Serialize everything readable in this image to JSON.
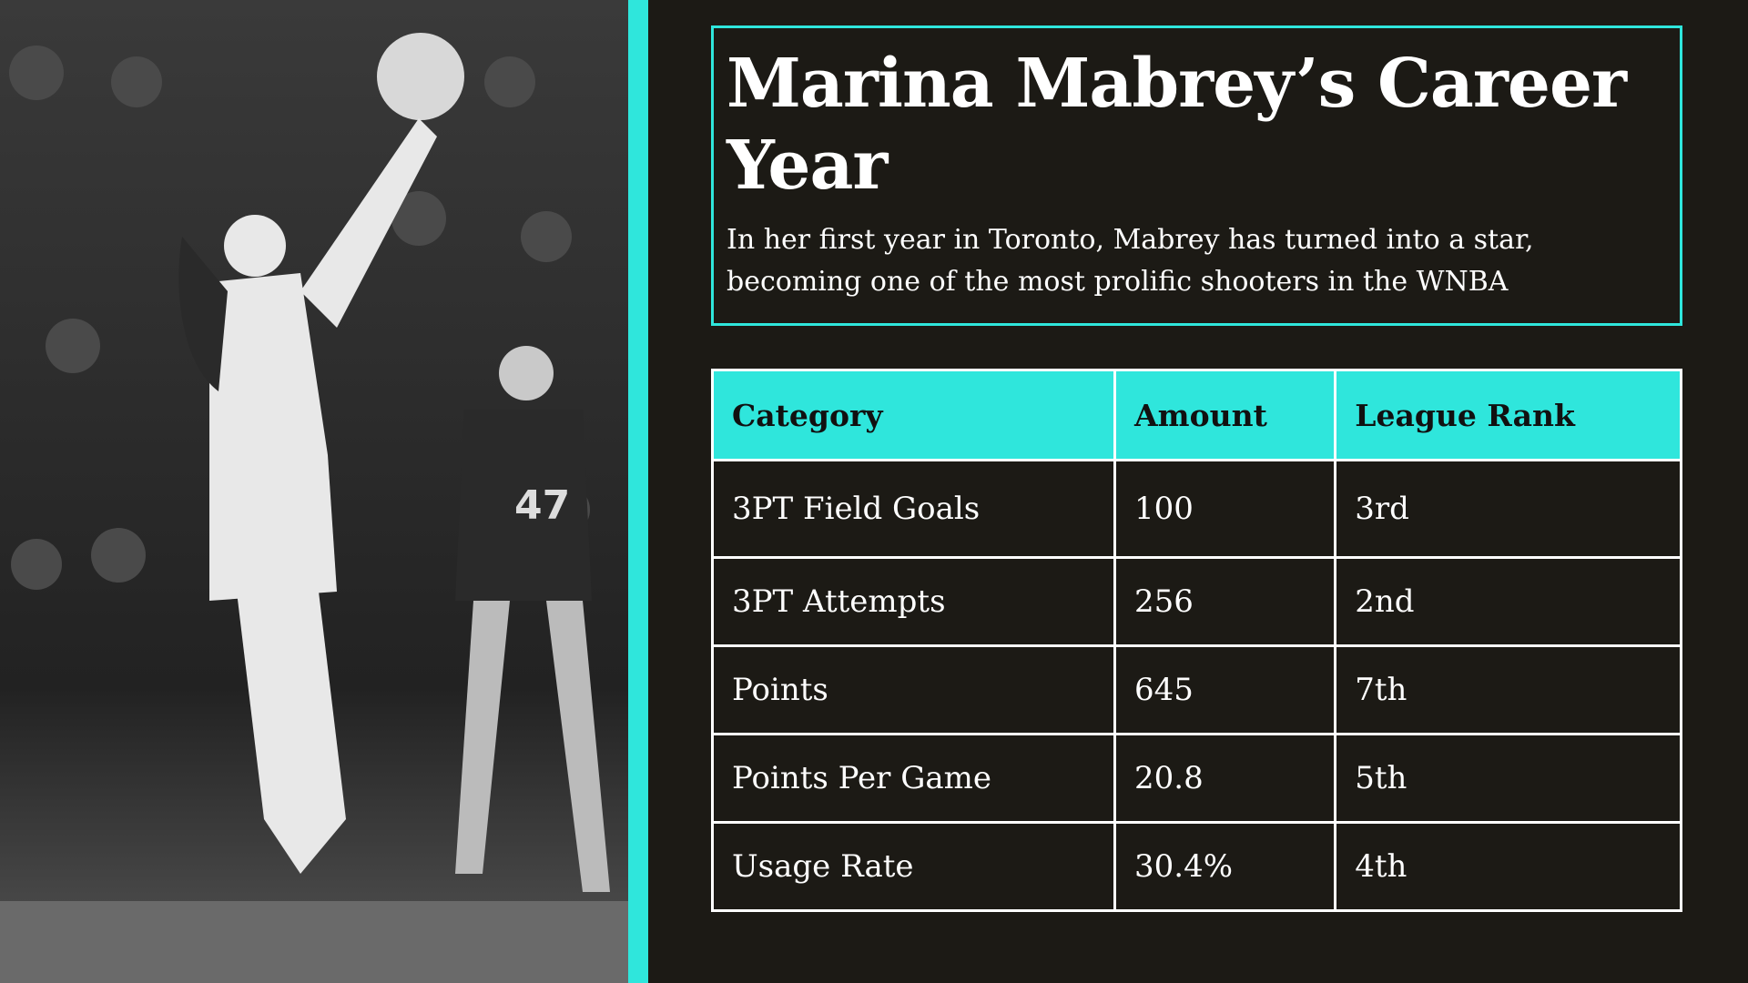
{
  "header": {
    "title": "Marina Mabrey’s Career Year",
    "subtitle": "In her first year in Toronto, Mabrey has turned into a star, becoming one of the most prolific shooters in the WNBA"
  },
  "table": {
    "columns": [
      "Category",
      "Amount",
      "League Rank"
    ],
    "rows": [
      [
        "3PT Field Goals",
        "100",
        "3rd"
      ],
      [
        "3PT Attempts",
        "256",
        "2nd"
      ],
      [
        "Points",
        "645",
        "7th"
      ],
      [
        "Points Per Game",
        "20.8",
        "5th"
      ],
      [
        "Usage Rate",
        "30.4%",
        "4th"
      ]
    ]
  }
}
